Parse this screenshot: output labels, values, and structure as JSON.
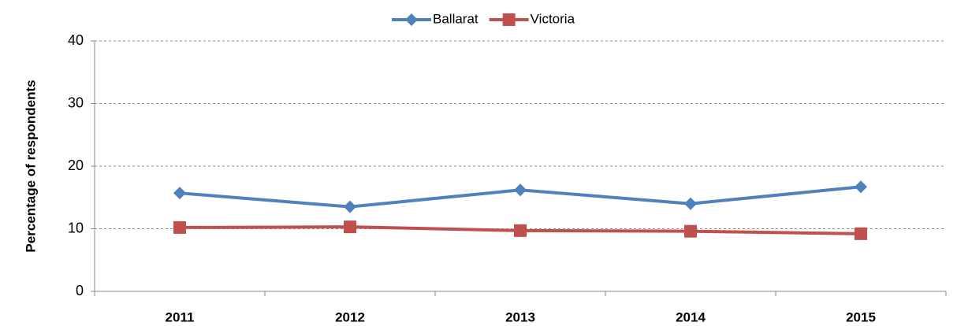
{
  "chart_data": {
    "type": "line",
    "y_label": "Percentage of respondents",
    "categories": [
      "2011",
      "2012",
      "2013",
      "2014",
      "2015"
    ],
    "series": [
      {
        "name": "Ballarat",
        "color": "#4f81bd",
        "marker": "diamond",
        "values": [
          15.7,
          13.5,
          16.2,
          14.0,
          16.7
        ]
      },
      {
        "name": "Victoria",
        "color": "#c0504d",
        "marker": "square",
        "values": [
          10.2,
          10.3,
          9.7,
          9.6,
          9.2
        ]
      }
    ],
    "ylim": [
      0,
      40
    ],
    "yticks": [
      0,
      10,
      20,
      30,
      40
    ],
    "grid": true,
    "legend": "top"
  }
}
